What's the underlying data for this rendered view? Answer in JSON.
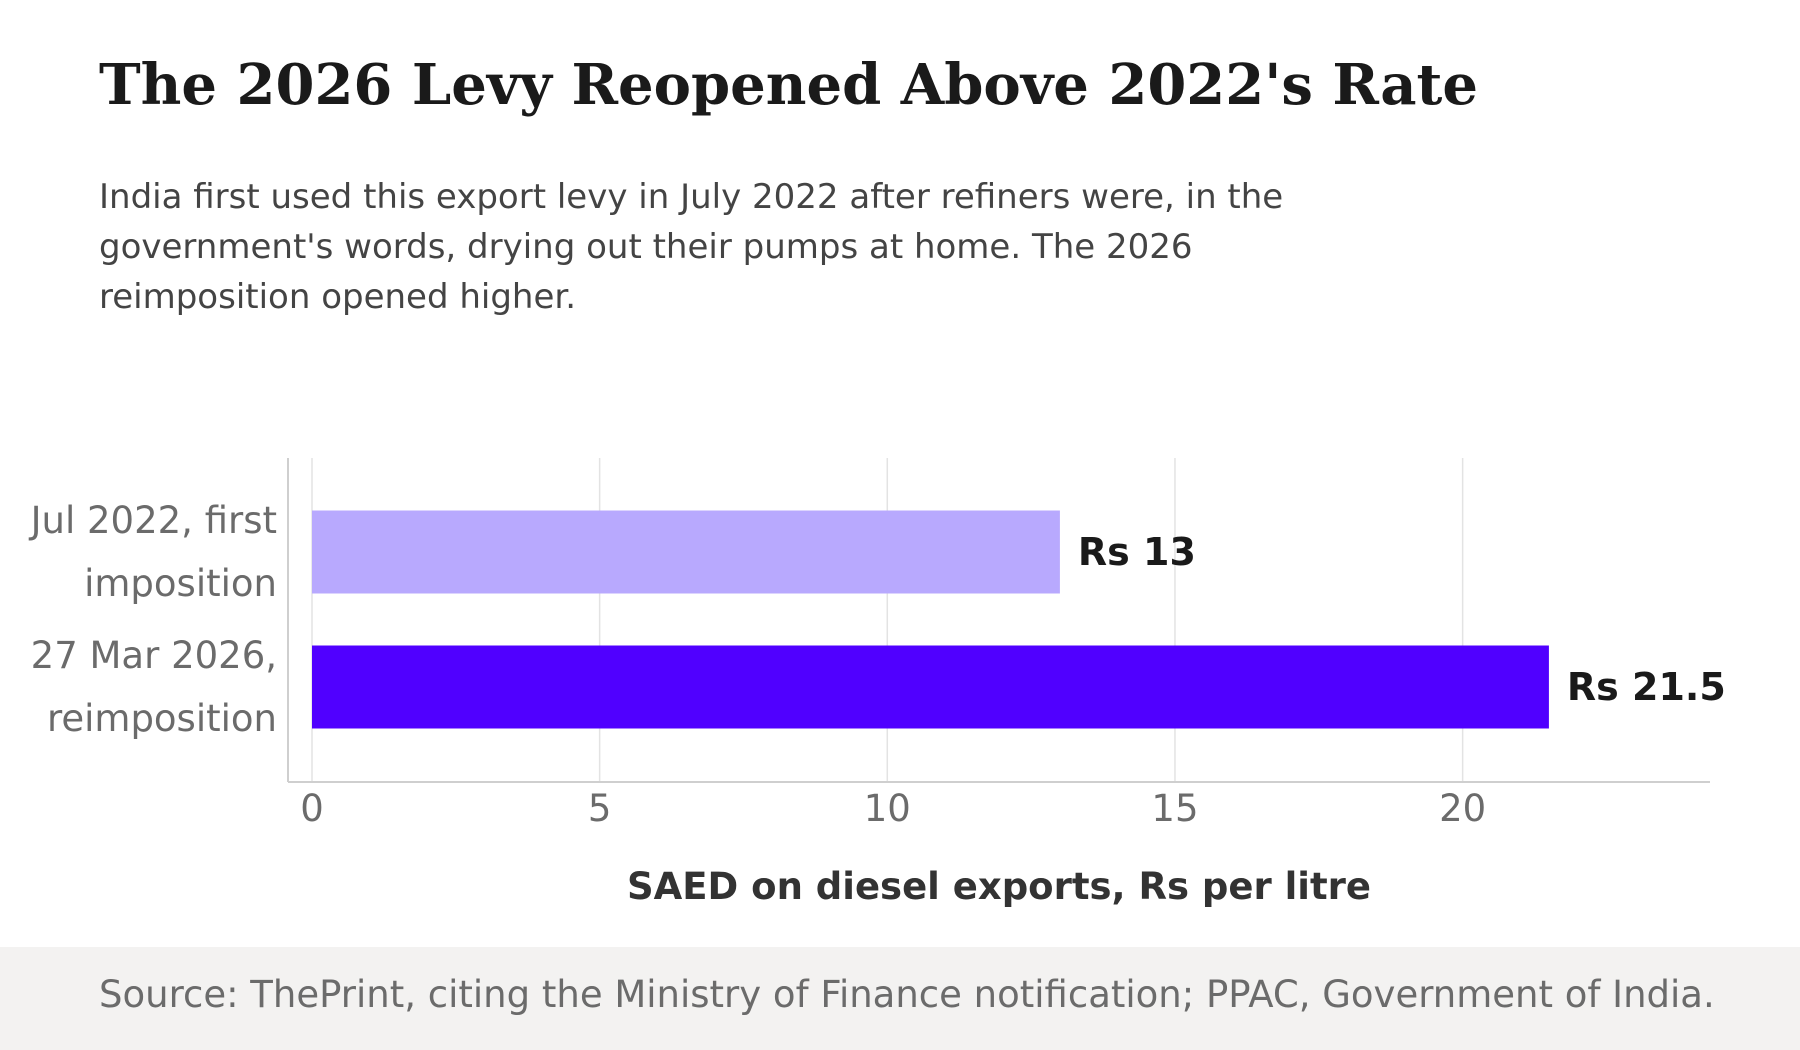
{
  "header": {
    "title": "The 2026 Levy Reopened Above 2022's Rate",
    "subtitle": "India first used this export levy in July 2022 after refiners were, in the government's words, drying out their pumps at home. The 2026 reimposition opened higher."
  },
  "footer": {
    "source": "Source: ThePrint, citing the Ministry of Finance notification; PPAC, Government of India."
  },
  "colors": {
    "bar_2022": "#b8a9fe",
    "bar_2026": "#5000ff",
    "grid": "#e3e3e3",
    "axis": "#cfcfcf",
    "tick_text": "#6b6b6b",
    "label_text": "#1a1a1a",
    "xlabel_text": "#333333"
  },
  "chart_data": {
    "type": "bar",
    "orientation": "horizontal",
    "categories": [
      [
        "Jul 2022, first",
        "imposition"
      ],
      [
        "27 Mar 2026,",
        "reimposition"
      ]
    ],
    "values": [
      13,
      21.5
    ],
    "value_labels": [
      "Rs 13",
      "Rs 21.5"
    ],
    "xlabel": "SAED on diesel exports, Rs per litre",
    "xticks": [
      0,
      5,
      10,
      15,
      20
    ],
    "xlim": [
      0,
      24.3
    ],
    "grid": "vertical",
    "legend": "none"
  }
}
